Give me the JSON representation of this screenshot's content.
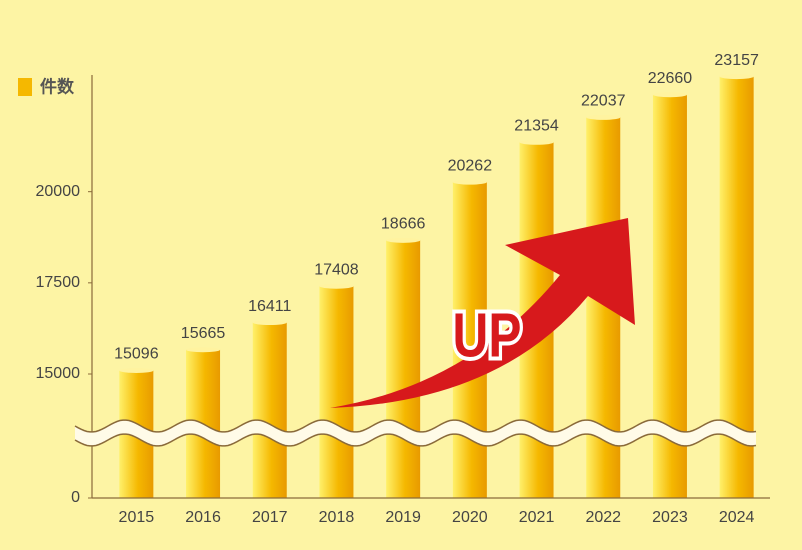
{
  "chart_data": {
    "type": "bar",
    "categories": [
      "2015",
      "2016",
      "2017",
      "2018",
      "2019",
      "2020",
      "2021",
      "2022",
      "2023",
      "2024"
    ],
    "series": [
      {
        "name": "件数",
        "color": "#f5b800",
        "values": [
          15096,
          15665,
          16411,
          17408,
          18666,
          20262,
          21354,
          22037,
          22660,
          23157
        ]
      }
    ],
    "ylim": [
      0,
      23200
    ],
    "yticks": [
      0,
      15000,
      17500,
      20000
    ],
    "broken_axis": true,
    "legend": "top-left",
    "data_labels": true,
    "annotation": "UP"
  }
}
